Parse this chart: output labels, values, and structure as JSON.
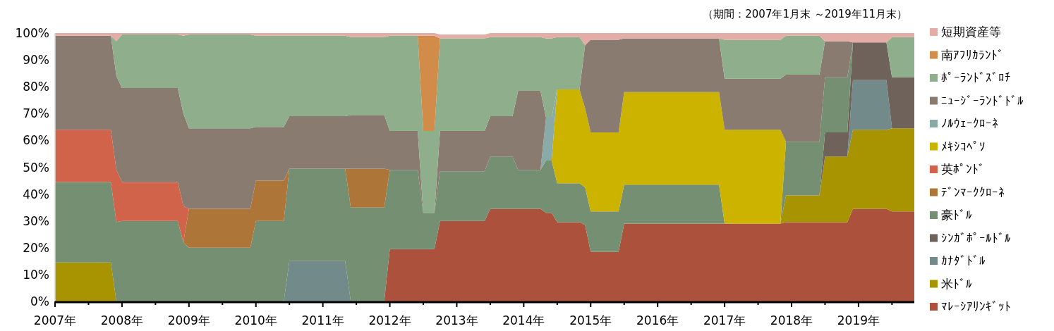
{
  "chart_data": {
    "type": "area",
    "stacked": true,
    "legend": "right",
    "annotations": [
      "（期間：2007年1月末 ～2019年11月末）"
    ],
    "x": [
      "2007-01",
      "2007-11",
      "2007-12",
      "2008-01",
      "2008-11",
      "2008-12",
      "2009-01",
      "2009-12",
      "2010-01",
      "2010-06",
      "2010-07",
      "2011-05",
      "2011-06",
      "2011-12",
      "2012-01",
      "2012-06",
      "2012-07",
      "2012-09",
      "2012-10",
      "2013-06",
      "2013-07",
      "2013-11",
      "2013-12",
      "2014-04",
      "2014-05",
      "2014-06",
      "2014-07",
      "2014-11",
      "2014-12",
      "2015-01",
      "2015-06",
      "2015-07",
      "2016-12",
      "2017-01",
      "2017-11",
      "2017-12",
      "2018-06",
      "2018-07",
      "2018-11",
      "2018-12",
      "2019-06",
      "2019-07",
      "2019-11"
    ],
    "xlim": [
      "2007-01",
      "2019-11"
    ],
    "xticks": [
      {
        "value": "2007-01",
        "label": "2007年"
      },
      {
        "value": "2007-07",
        "label": null
      },
      {
        "value": "2008-01",
        "label": "2008年"
      },
      {
        "value": "2008-07",
        "label": null
      },
      {
        "value": "2009-01",
        "label": "2009年"
      },
      {
        "value": "2009-07",
        "label": null
      },
      {
        "value": "2010-01",
        "label": "2010年"
      },
      {
        "value": "2010-07",
        "label": null
      },
      {
        "value": "2011-01",
        "label": "2011年"
      },
      {
        "value": "2011-07",
        "label": null
      },
      {
        "value": "2012-01",
        "label": "2012年"
      },
      {
        "value": "2012-07",
        "label": null
      },
      {
        "value": "2013-01",
        "label": "2013年"
      },
      {
        "value": "2013-07",
        "label": null
      },
      {
        "value": "2014-01",
        "label": "2014年"
      },
      {
        "value": "2014-07",
        "label": null
      },
      {
        "value": "2015-01",
        "label": "2015年"
      },
      {
        "value": "2015-07",
        "label": null
      },
      {
        "value": "2016-01",
        "label": "2016年"
      },
      {
        "value": "2016-07",
        "label": null
      },
      {
        "value": "2017-01",
        "label": "2017年"
      },
      {
        "value": "2017-07",
        "label": null
      },
      {
        "value": "2018-01",
        "label": "2018年"
      },
      {
        "value": "2018-07",
        "label": null
      },
      {
        "value": "2019-01",
        "label": "2019年"
      },
      {
        "value": "2019-07",
        "label": null
      }
    ],
    "ylim": [
      0,
      100
    ],
    "yticks": [
      {
        "value": 0,
        "label": "0%"
      },
      {
        "value": 10,
        "label": "10%"
      },
      {
        "value": 20,
        "label": "20%"
      },
      {
        "value": 30,
        "label": "30%"
      },
      {
        "value": 40,
        "label": "40%"
      },
      {
        "value": 50,
        "label": "50%"
      },
      {
        "value": 60,
        "label": "60%"
      },
      {
        "value": 70,
        "label": "70%"
      },
      {
        "value": 80,
        "label": "80%"
      },
      {
        "value": 90,
        "label": "90%"
      },
      {
        "value": 100,
        "label": "100%"
      }
    ],
    "series": [
      {
        "name": "ﾏﾚｰｼｱﾘﾝｷﾞｯﾄ",
        "color": "#ab513c",
        "values": [
          null,
          null,
          null,
          null,
          null,
          null,
          null,
          null,
          null,
          null,
          null,
          null,
          null,
          0,
          19.5,
          19.5,
          19.5,
          19.5,
          30,
          30,
          34.5,
          34.5,
          34.5,
          34.5,
          33,
          33,
          29.5,
          29.5,
          28.5,
          18.5,
          18.5,
          29,
          29,
          29,
          29,
          29.5,
          29.5,
          29.5,
          29.5,
          34.5,
          34.5,
          33.5,
          33.5
        ]
      },
      {
        "name": "米ﾄﾞﾙ",
        "color": "#a89400",
        "values": [
          14.5,
          14.5,
          0,
          null,
          null,
          null,
          null,
          null,
          null,
          null,
          null,
          null,
          null,
          null,
          null,
          null,
          null,
          null,
          null,
          null,
          null,
          null,
          null,
          null,
          null,
          null,
          null,
          null,
          null,
          null,
          null,
          null,
          null,
          null,
          0,
          10,
          10,
          24.5,
          24.5,
          29.5,
          29.5,
          31,
          31
        ]
      },
      {
        "name": "ｶﾅﾀﾞﾄﾞﾙ",
        "color": "#738a8a",
        "values": [
          null,
          null,
          null,
          null,
          null,
          null,
          null,
          null,
          null,
          0,
          15,
          15,
          0,
          null,
          null,
          null,
          null,
          null,
          null,
          null,
          null,
          null,
          null,
          null,
          null,
          null,
          null,
          null,
          null,
          null,
          null,
          null,
          null,
          null,
          null,
          null,
          null,
          null,
          0,
          18.5,
          18.5,
          0,
          null
        ]
      },
      {
        "name": "ｼﾝｶﾞﾎﾟｰﾙﾄﾞﾙ",
        "color": "#6f625a",
        "values": [
          null,
          null,
          null,
          null,
          null,
          null,
          null,
          null,
          null,
          null,
          null,
          null,
          null,
          null,
          null,
          null,
          null,
          null,
          null,
          null,
          null,
          null,
          null,
          null,
          null,
          null,
          null,
          null,
          null,
          null,
          null,
          null,
          null,
          null,
          null,
          null,
          0,
          9,
          9,
          14,
          14,
          19,
          19
        ]
      },
      {
        "name": "豪ﾄﾞﾙ",
        "color": "#748f72",
        "values": [
          30,
          30,
          29.5,
          30,
          30,
          22,
          20,
          20,
          30,
          30,
          34.5,
          34.5,
          35,
          35,
          29.5,
          29.5,
          13.5,
          13.5,
          18.5,
          18.5,
          19.5,
          19.5,
          14.5,
          14.5,
          19.5,
          19.5,
          14.5,
          14.5,
          14,
          15,
          15,
          14.5,
          14.5,
          0,
          0,
          20,
          20,
          20.5,
          20.5,
          0,
          null,
          null,
          null
        ]
      },
      {
        "name": "ﾃﾞﾝﾏｰｸｸﾛｰﾈ",
        "color": "#ad7538",
        "values": [
          null,
          null,
          null,
          null,
          null,
          0,
          14.5,
          14.5,
          15,
          15,
          0,
          0,
          14.5,
          14.5,
          0,
          null,
          null,
          null,
          null,
          null,
          null,
          null,
          null,
          null,
          null,
          null,
          null,
          null,
          null,
          null,
          null,
          null,
          null,
          null,
          null,
          null,
          null,
          null,
          null,
          null,
          null,
          null,
          null
        ]
      },
      {
        "name": "英ﾎﾟﾝﾄﾞ",
        "color": "#d0634a",
        "values": [
          19.5,
          19.5,
          19.5,
          14.5,
          14.5,
          13.5,
          0,
          null,
          null,
          null,
          null,
          null,
          null,
          null,
          null,
          null,
          null,
          null,
          null,
          null,
          null,
          null,
          null,
          null,
          null,
          null,
          null,
          null,
          null,
          null,
          null,
          null,
          null,
          null,
          null,
          null,
          null,
          null,
          null,
          null,
          null,
          null,
          null
        ]
      },
      {
        "name": "ﾒｷｼｺﾍﾟｿ",
        "color": "#ccb300",
        "values": [
          null,
          null,
          null,
          null,
          null,
          null,
          null,
          null,
          null,
          null,
          null,
          null,
          null,
          null,
          null,
          null,
          null,
          null,
          null,
          null,
          null,
          null,
          null,
          null,
          null,
          0,
          35,
          35,
          29.5,
          29.5,
          29.5,
          34.5,
          34.5,
          35,
          35,
          0,
          null,
          null,
          null,
          null,
          null,
          null,
          null
        ]
      },
      {
        "name": "ﾉﾙｳｪｰｸﾛｰﾈ",
        "color": "#8aaaa8",
        "values": [
          null,
          null,
          null,
          null,
          null,
          null,
          null,
          null,
          null,
          null,
          null,
          null,
          null,
          null,
          null,
          null,
          null,
          null,
          null,
          null,
          null,
          null,
          null,
          0,
          16,
          16,
          0,
          null,
          null,
          null,
          null,
          null,
          null,
          null,
          null,
          null,
          null,
          null,
          null,
          null,
          null,
          null,
          null
        ]
      },
      {
        "name": "ﾆｭｰｼﾞｰﾗﾝﾄﾞﾄﾞﾙ",
        "color": "#8a7b70",
        "values": [
          35,
          35,
          35,
          35,
          35,
          34.5,
          30,
          30,
          20,
          20,
          19.5,
          19.5,
          20,
          20,
          14.5,
          14.5,
          0,
          0,
          15,
          15,
          15,
          15,
          29.5,
          29.5,
          0,
          null,
          null,
          0,
          23.5,
          34.5,
          34.5,
          20,
          20,
          19,
          19,
          25,
          25,
          13.5,
          13.5,
          0,
          null,
          null,
          null
        ]
      },
      {
        "name": "ﾎﾟｰﾗﾝﾄﾞｽﾞﾛﾁ",
        "color": "#8fae8c",
        "values": [
          null,
          0,
          13,
          20,
          20,
          29,
          35,
          35,
          34,
          34,
          30,
          30,
          29,
          29,
          35.5,
          35.5,
          30.5,
          30.5,
          34.5,
          34.5,
          29.5,
          29.5,
          20,
          20,
          29.5,
          29.5,
          19.5,
          19.5,
          0,
          null,
          null,
          null,
          0,
          14.5,
          14.5,
          14.5,
          14.5,
          0,
          null,
          null,
          0,
          15,
          15
        ]
      },
      {
        "name": "南ｱﾌﾘｶﾗﾝﾄﾞ",
        "color": "#d08c48",
        "values": [
          null,
          null,
          null,
          null,
          null,
          null,
          null,
          null,
          null,
          null,
          null,
          null,
          null,
          null,
          null,
          0,
          35.5,
          35.5,
          0,
          null,
          null,
          null,
          null,
          null,
          null,
          null,
          null,
          null,
          null,
          null,
          null,
          null,
          null,
          null,
          null,
          null,
          null,
          null,
          null,
          null,
          null,
          null,
          null
        ]
      },
      {
        "name": "短期資産等",
        "color": "#e3aca6",
        "values": [
          1,
          1,
          3,
          0.5,
          0.5,
          1,
          0.5,
          0.5,
          1,
          1,
          1,
          1,
          1.5,
          1.5,
          1,
          1,
          1,
          1,
          1.5,
          1.5,
          1.5,
          1.5,
          1.5,
          1.5,
          2,
          2,
          1.5,
          1.5,
          4.5,
          2.5,
          2.5,
          2,
          2,
          2.5,
          2.5,
          1,
          1,
          3,
          3,
          3.5,
          3.5,
          1.5,
          1.5
        ]
      }
    ]
  }
}
